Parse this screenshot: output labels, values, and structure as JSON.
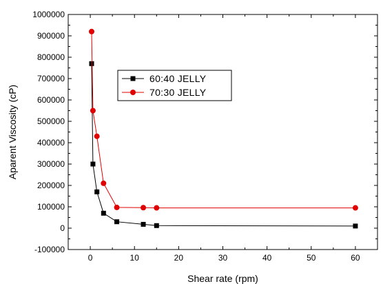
{
  "chart_data": {
    "type": "line",
    "title": "",
    "xlabel": "Shear rate (rpm)",
    "ylabel": "Aparent  Viscosity (cP)",
    "xlim": [
      -5,
      65
    ],
    "ylim": [
      -100000,
      1000000
    ],
    "x_ticks": [
      0,
      10,
      20,
      30,
      40,
      50,
      60
    ],
    "y_ticks": [
      -100000,
      0,
      100000,
      200000,
      300000,
      400000,
      500000,
      600000,
      700000,
      800000,
      900000,
      1000000
    ],
    "x_tick_labels": [
      "0",
      "10",
      "20",
      "30",
      "40",
      "50",
      "60"
    ],
    "y_tick_labels": [
      "-100000",
      "0",
      "100000",
      "200000",
      "300000",
      "400000",
      "500000",
      "600000",
      "700000",
      "800000",
      "900000",
      "1000000"
    ],
    "grid": false,
    "legend_position": "upper-middle",
    "series": [
      {
        "name": "60:40  JELLY",
        "color": "#000000",
        "marker": "square",
        "x": [
          0.3,
          0.6,
          1.5,
          3,
          6,
          12,
          15,
          60
        ],
        "y": [
          770000,
          300000,
          170000,
          70000,
          30000,
          18000,
          12000,
          10000
        ]
      },
      {
        "name": "70:30  JELLY",
        "color": "#e00000",
        "marker": "circle",
        "x": [
          0.3,
          0.6,
          1.5,
          3,
          6,
          12,
          15,
          60
        ],
        "y": [
          920000,
          550000,
          430000,
          210000,
          97000,
          96000,
          95000,
          95000
        ]
      }
    ]
  }
}
